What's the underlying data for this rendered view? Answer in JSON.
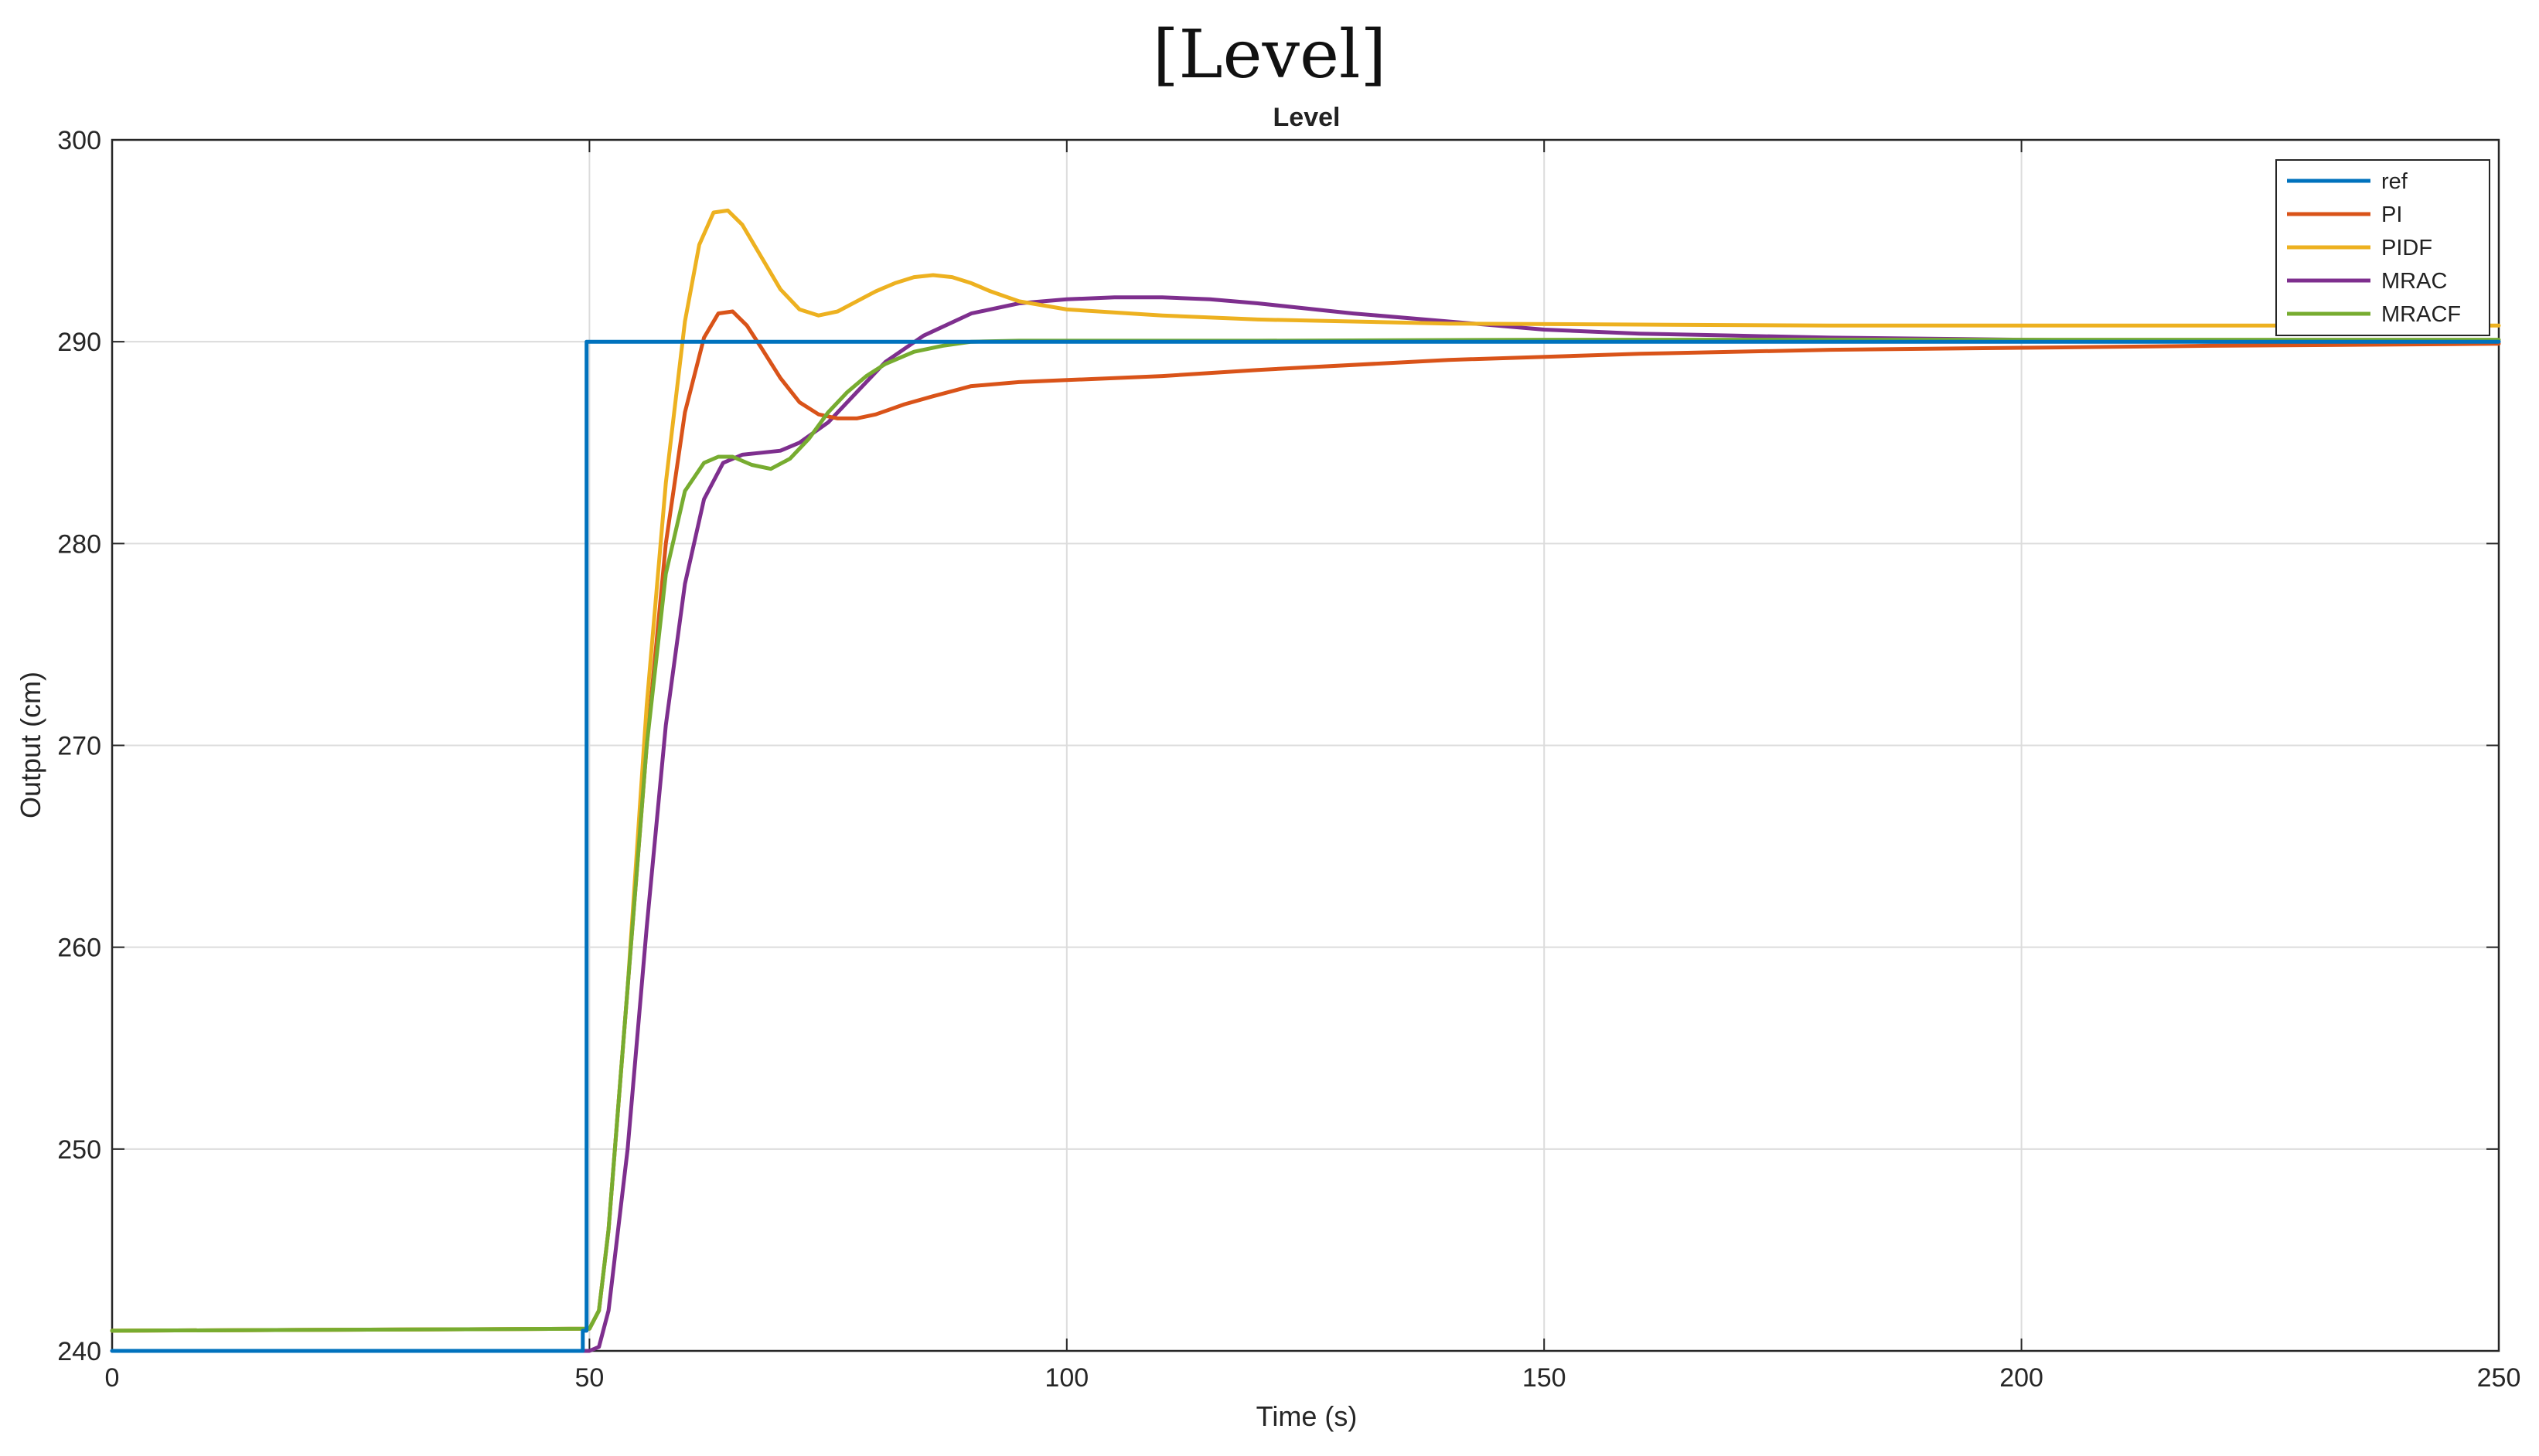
{
  "figure_title": "[Level]",
  "chart_data": {
    "type": "line",
    "title": "Level",
    "xlabel": "Time (s)",
    "ylabel": "Output (cm)",
    "xlim": [
      0,
      250
    ],
    "ylim": [
      240,
      300
    ],
    "xticks": [
      0,
      50,
      100,
      150,
      200,
      250
    ],
    "yticks": [
      240,
      250,
      260,
      270,
      280,
      290,
      300
    ],
    "xtick_labels": [
      "0",
      "50",
      "100",
      "150",
      "200",
      "250"
    ],
    "ytick_labels": [
      "240",
      "250",
      "260",
      "270",
      "280",
      "290",
      "300"
    ],
    "grid": true,
    "legend_position": "top-right",
    "series": [
      {
        "name": "ref",
        "color": "#0072BD",
        "x": [
          0,
          49.3,
          49.3,
          49.7,
          49.7,
          250
        ],
        "y": [
          240,
          240,
          241,
          241,
          290,
          290
        ]
      },
      {
        "name": "PI",
        "color": "#D95319",
        "x": [
          0,
          50,
          51,
          52,
          54,
          56,
          58,
          60,
          62,
          63.5,
          65,
          66.5,
          68,
          70,
          72,
          74,
          76,
          78,
          80,
          83,
          86,
          90,
          95,
          100,
          110,
          120,
          140,
          160,
          180,
          200,
          220,
          250
        ],
        "y": [
          241,
          241.1,
          242,
          246,
          258,
          270,
          280,
          286.5,
          290.2,
          291.4,
          291.5,
          290.8,
          289.7,
          288.2,
          287.0,
          286.4,
          286.2,
          286.2,
          286.4,
          286.9,
          287.3,
          287.8,
          288.0,
          288.1,
          288.3,
          288.6,
          289.1,
          289.4,
          289.6,
          289.7,
          289.8,
          289.9
        ]
      },
      {
        "name": "PIDF",
        "color": "#EDB120",
        "x": [
          0,
          50,
          51,
          52,
          54,
          56,
          58,
          60,
          61.5,
          63,
          64.5,
          66,
          68,
          70,
          72,
          74,
          76,
          78,
          80,
          82,
          84,
          86,
          88,
          90,
          92,
          95,
          100,
          110,
          120,
          140,
          160,
          180,
          200,
          220,
          250
        ],
        "y": [
          241,
          241.1,
          242,
          246,
          258,
          272,
          283,
          291,
          294.8,
          296.4,
          296.5,
          295.8,
          294.2,
          292.6,
          291.6,
          291.3,
          291.5,
          292.0,
          292.5,
          292.9,
          293.2,
          293.3,
          293.2,
          292.9,
          292.5,
          292.0,
          291.6,
          291.3,
          291.1,
          290.9,
          290.85,
          290.8,
          290.8,
          290.8,
          290.8
        ]
      },
      {
        "name": "MRAC",
        "color": "#7E2F8E",
        "x": [
          0,
          50,
          51,
          52,
          54,
          56,
          58,
          60,
          62,
          64,
          66,
          68,
          70,
          72,
          75,
          78,
          81,
          85,
          90,
          95,
          100,
          105,
          110,
          115,
          120,
          130,
          140,
          150,
          160,
          170,
          180,
          200,
          220,
          250
        ],
        "y": [
          240,
          240,
          240.2,
          242,
          250,
          261,
          271,
          278,
          282.2,
          284.0,
          284.4,
          284.5,
          284.6,
          285.0,
          286.0,
          287.5,
          289.0,
          290.3,
          291.4,
          291.9,
          292.1,
          292.2,
          292.2,
          292.1,
          291.9,
          291.4,
          291.0,
          290.6,
          290.4,
          290.3,
          290.2,
          290.1,
          290.0,
          290.0
        ]
      },
      {
        "name": "MRACF",
        "color": "#77AC30",
        "x": [
          0,
          50,
          51,
          52,
          54,
          56,
          58,
          60,
          62,
          63.5,
          65,
          67,
          69,
          71,
          73,
          75,
          77,
          79,
          81,
          84,
          87,
          90,
          95,
          100,
          120,
          150,
          200,
          250
        ],
        "y": [
          241,
          241.1,
          242,
          246,
          258,
          270,
          278.5,
          282.6,
          284.0,
          284.3,
          284.3,
          283.9,
          283.7,
          284.2,
          285.2,
          286.5,
          287.5,
          288.3,
          288.9,
          289.5,
          289.8,
          290.0,
          290.05,
          290.05,
          290.05,
          290.1,
          290.1,
          290.1
        ]
      }
    ]
  }
}
